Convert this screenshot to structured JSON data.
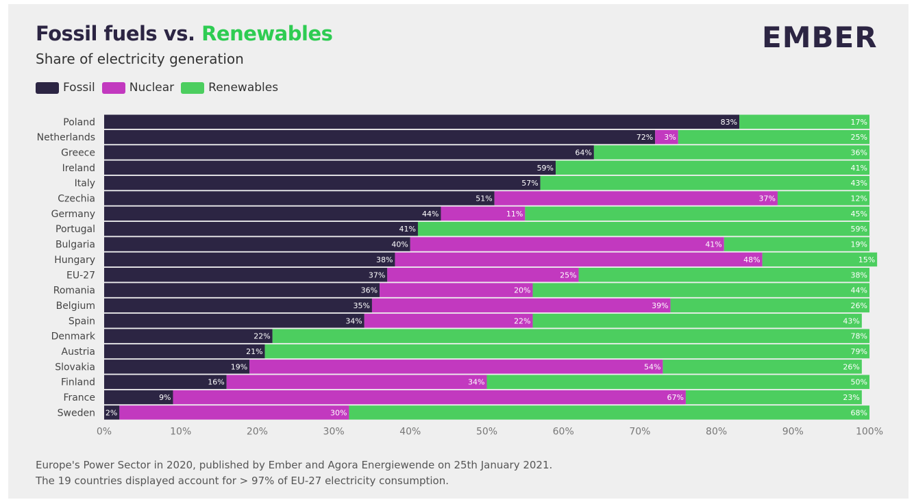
{
  "header": {
    "title_part1": "Fossil fuels vs.",
    "title_part2": "Renewables",
    "subtitle": "Share of electricity generation",
    "logo": "EMBER"
  },
  "colors": {
    "fossil": "#2c2543",
    "nuclear": "#c239bf",
    "renewables": "#4cce5f"
  },
  "footer": {
    "line1": "Europe's Power Sector in 2020, published by Ember and Agora Energiewende on 25th January 2021.",
    "line2": "The 19 countries displayed account for > 97% of EU-27 electricity consumption."
  },
  "chart_data": {
    "type": "bar",
    "orientation": "horizontal",
    "stacked": true,
    "title": "Fossil fuels vs. Renewables",
    "subtitle": "Share of electricity generation",
    "legend_placement": "top-left",
    "grid": false,
    "xlim": [
      0,
      100
    ],
    "x_ticks": [
      "0%",
      "10%",
      "20%",
      "30%",
      "40%",
      "50%",
      "60%",
      "70%",
      "80%",
      "90%",
      "100%"
    ],
    "categories": [
      "Poland",
      "Netherlands",
      "Greece",
      "Ireland",
      "Italy",
      "Czechia",
      "Germany",
      "Portugal",
      "Bulgaria",
      "Hungary",
      "EU-27",
      "Romania",
      "Belgium",
      "Spain",
      "Denmark",
      "Austria",
      "Slovakia",
      "Finland",
      "France",
      "Sweden"
    ],
    "series": [
      {
        "name": "Fossil",
        "color": "#2c2543",
        "values": [
          83,
          72,
          64,
          59,
          57,
          51,
          44,
          41,
          40,
          38,
          37,
          36,
          35,
          34,
          22,
          21,
          19,
          16,
          9,
          2
        ]
      },
      {
        "name": "Nuclear",
        "color": "#c239bf",
        "values": [
          0,
          3,
          0,
          0,
          0,
          37,
          11,
          0,
          41,
          48,
          25,
          20,
          39,
          22,
          0,
          0,
          54,
          34,
          67,
          30
        ]
      },
      {
        "name": "Renewables",
        "color": "#4cce5f",
        "values": [
          17,
          25,
          36,
          41,
          43,
          12,
          45,
          59,
          19,
          15,
          38,
          44,
          26,
          43,
          78,
          79,
          26,
          50,
          23,
          68
        ]
      }
    ]
  }
}
